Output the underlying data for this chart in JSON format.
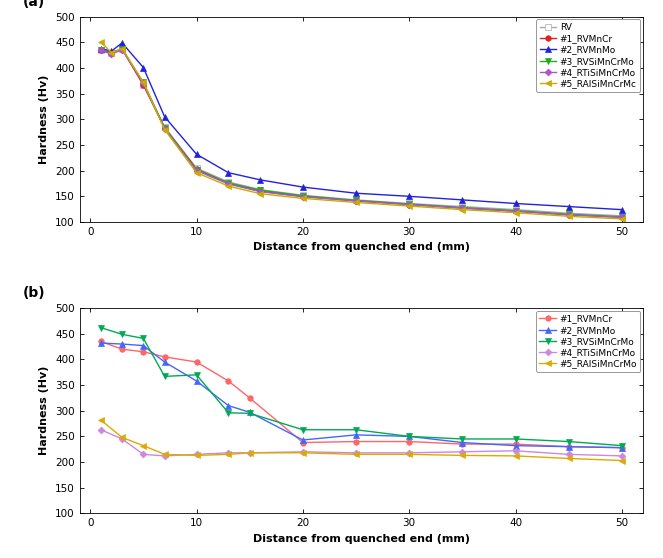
{
  "subplot_a": {
    "title": "(a)",
    "xlabel": "Distance from quenched end (mm)",
    "ylabel": "Hardness (Hv)",
    "ylim": [
      100,
      500
    ],
    "xlim": [
      -1,
      52
    ],
    "yticks": [
      100,
      150,
      200,
      250,
      300,
      350,
      400,
      450,
      500
    ],
    "xticks": [
      0,
      10,
      20,
      30,
      40,
      50
    ],
    "series": [
      {
        "label": "RV",
        "color": "#aaaaaa",
        "marker": "s",
        "markerfacecolor": "white",
        "markersize": 4,
        "linewidth": 1.0,
        "x": [
          1,
          2,
          3,
          5,
          7,
          10,
          13,
          16,
          20,
          25,
          30,
          35,
          40,
          45,
          50
        ],
        "y": [
          435,
          430,
          438,
          367,
          285,
          205,
          178,
          163,
          152,
          143,
          136,
          130,
          124,
          117,
          112
        ]
      },
      {
        "label": "#1_RVMnCr",
        "color": "#dd2222",
        "marker": "o",
        "markerfacecolor": "#dd2222",
        "markersize": 4,
        "linewidth": 1.0,
        "x": [
          1,
          2,
          3,
          5,
          7,
          10,
          13,
          16,
          20,
          25,
          30,
          35,
          40,
          45,
          50
        ],
        "y": [
          435,
          430,
          437,
          367,
          283,
          203,
          175,
          160,
          150,
          141,
          134,
          127,
          121,
          114,
          109
        ]
      },
      {
        "label": "#2_RVMnMo",
        "color": "#2222dd",
        "marker": "^",
        "markerfacecolor": "#2222dd",
        "markersize": 4,
        "linewidth": 1.0,
        "x": [
          1,
          2,
          3,
          5,
          7,
          10,
          13,
          16,
          20,
          25,
          30,
          35,
          40,
          45,
          50
        ],
        "y": [
          438,
          433,
          449,
          401,
          305,
          232,
          196,
          182,
          168,
          156,
          150,
          143,
          136,
          130,
          124
        ]
      },
      {
        "label": "#3_RVSiMnCrMo",
        "color": "#22aa22",
        "marker": "v",
        "markerfacecolor": "#22aa22",
        "markersize": 4,
        "linewidth": 1.0,
        "x": [
          1,
          2,
          3,
          5,
          7,
          10,
          13,
          16,
          20,
          25,
          30,
          35,
          40,
          45,
          50
        ],
        "y": [
          435,
          428,
          437,
          372,
          284,
          202,
          176,
          162,
          151,
          142,
          135,
          128,
          122,
          115,
          110
        ]
      },
      {
        "label": "#4_RTiSiMnCrMo",
        "color": "#aa55cc",
        "marker": "D",
        "markerfacecolor": "#aa55cc",
        "markersize": 3.5,
        "linewidth": 1.0,
        "x": [
          1,
          2,
          3,
          5,
          7,
          10,
          13,
          16,
          20,
          25,
          30,
          35,
          40,
          45,
          50
        ],
        "y": [
          435,
          427,
          436,
          370,
          282,
          200,
          174,
          159,
          149,
          141,
          134,
          127,
          121,
          114,
          109
        ]
      },
      {
        "label": "#5_RAlSiMnCrMc",
        "color": "#ccaa00",
        "marker": "<",
        "markerfacecolor": "#ccaa00",
        "markersize": 4,
        "linewidth": 1.0,
        "x": [
          1,
          2,
          3,
          5,
          7,
          10,
          13,
          16,
          20,
          25,
          30,
          35,
          40,
          45,
          50
        ],
        "y": [
          451,
          430,
          438,
          372,
          280,
          196,
          170,
          155,
          146,
          138,
          131,
          124,
          118,
          111,
          106
        ]
      }
    ]
  },
  "subplot_b": {
    "title": "(b)",
    "xlabel": "Distance from quenched end (mm)",
    "ylabel": "Hardness (Hv)",
    "ylim": [
      100,
      500
    ],
    "xlim": [
      -1,
      52
    ],
    "yticks": [
      100,
      150,
      200,
      250,
      300,
      350,
      400,
      450,
      500
    ],
    "xticks": [
      0,
      10,
      20,
      30,
      40,
      50
    ],
    "series": [
      {
        "label": "#1_RVMnCr",
        "color": "#ff6666",
        "marker": "o",
        "markerfacecolor": "#ff6666",
        "markersize": 4,
        "linewidth": 1.0,
        "x": [
          1,
          3,
          5,
          7,
          10,
          13,
          15,
          20,
          25,
          30,
          35,
          40,
          45,
          50
        ],
        "y": [
          435,
          420,
          415,
          405,
          395,
          358,
          325,
          238,
          240,
          240,
          235,
          235,
          230,
          228
        ]
      },
      {
        "label": "#2_RVMnMo",
        "color": "#4466ff",
        "marker": "^",
        "markerfacecolor": "#4466ff",
        "markersize": 4,
        "linewidth": 1.0,
        "x": [
          1,
          3,
          5,
          7,
          10,
          13,
          15,
          20,
          25,
          30,
          35,
          40,
          45,
          50
        ],
        "y": [
          432,
          430,
          427,
          395,
          358,
          310,
          297,
          243,
          253,
          250,
          238,
          232,
          230,
          228
        ]
      },
      {
        "label": "#3_RVSiMnCrMo",
        "color": "#00aa55",
        "marker": "v",
        "markerfacecolor": "#00aa55",
        "markersize": 4,
        "linewidth": 1.0,
        "x": [
          1,
          3,
          5,
          7,
          10,
          13,
          15,
          20,
          25,
          30,
          35,
          40,
          45,
          50
        ],
        "y": [
          462,
          449,
          441,
          367,
          370,
          296,
          295,
          263,
          263,
          250,
          245,
          245,
          240,
          232
        ]
      },
      {
        "label": "#4_RTiSiMnCrMo",
        "color": "#cc88dd",
        "marker": "D",
        "markerfacecolor": "#cc88dd",
        "markersize": 3.5,
        "linewidth": 1.0,
        "x": [
          1,
          3,
          5,
          7,
          10,
          13,
          15,
          20,
          25,
          30,
          35,
          40,
          45,
          50
        ],
        "y": [
          263,
          245,
          215,
          212,
          215,
          218,
          218,
          220,
          218,
          218,
          220,
          222,
          215,
          212
        ]
      },
      {
        "label": "#5_RAlSiMnCrMo",
        "color": "#ddaa00",
        "marker": "<",
        "markerfacecolor": "#ddaa00",
        "markersize": 4,
        "linewidth": 1.0,
        "x": [
          1,
          3,
          5,
          7,
          10,
          13,
          15,
          20,
          25,
          30,
          35,
          40,
          45,
          50
        ],
        "y": [
          282,
          248,
          232,
          215,
          213,
          215,
          218,
          218,
          215,
          215,
          213,
          212,
          207,
          203
        ]
      }
    ]
  }
}
